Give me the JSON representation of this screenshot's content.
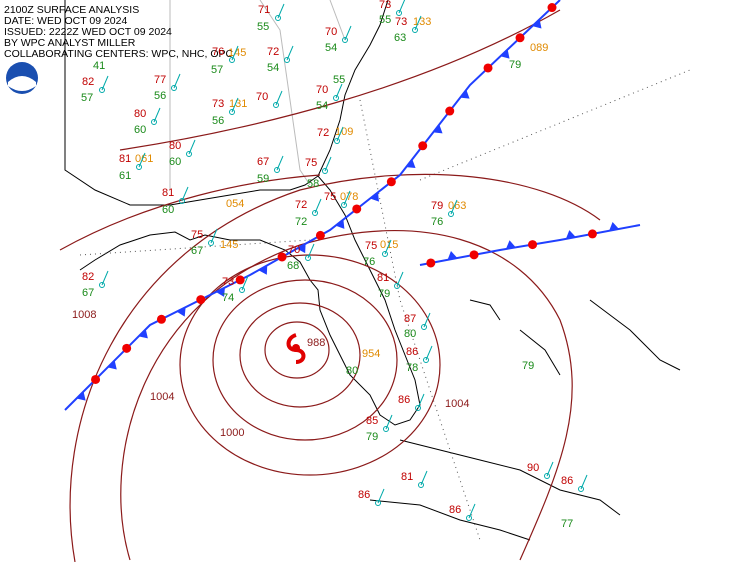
{
  "header": {
    "lines": [
      "2100Z SURFACE ANALYSIS",
      "DATE: WED OCT 09 2024",
      "ISSUED: 2222Z WED OCT 09 2024",
      "BY WPC ANALYST MILLER",
      "COLLABORATING CENTERS: WPC, NHC, OPC"
    ]
  },
  "isobar_labels": [
    "1004",
    "1000",
    "988",
    "1004",
    "1008"
  ],
  "stations": {
    "temperatures": [
      "71",
      "70",
      "73",
      "73",
      "76",
      "72",
      "82",
      "77",
      "70",
      "73",
      "70",
      "80",
      "72",
      "81",
      "80",
      "67",
      "75",
      "81",
      "72",
      "75",
      "79",
      "75",
      "70",
      "75",
      "73",
      "82",
      "81",
      "87",
      "86",
      "85",
      "86",
      "81",
      "90",
      "86",
      "86",
      "86"
    ],
    "dewpoints": [
      "55",
      "54",
      "55",
      "63",
      "57",
      "54",
      "41",
      "57",
      "56",
      "55",
      "54",
      "56",
      "60",
      "61",
      "60",
      "59",
      "58",
      "60",
      "72",
      "76",
      "67",
      "68",
      "76",
      "74",
      "67",
      "79",
      "80",
      "78",
      "79",
      "80",
      "79",
      "79",
      "77"
    ],
    "pressures": [
      "133",
      "145",
      "131",
      "109",
      "061",
      "078",
      "063",
      "054",
      "145",
      "015",
      "954",
      "089"
    ]
  }
}
